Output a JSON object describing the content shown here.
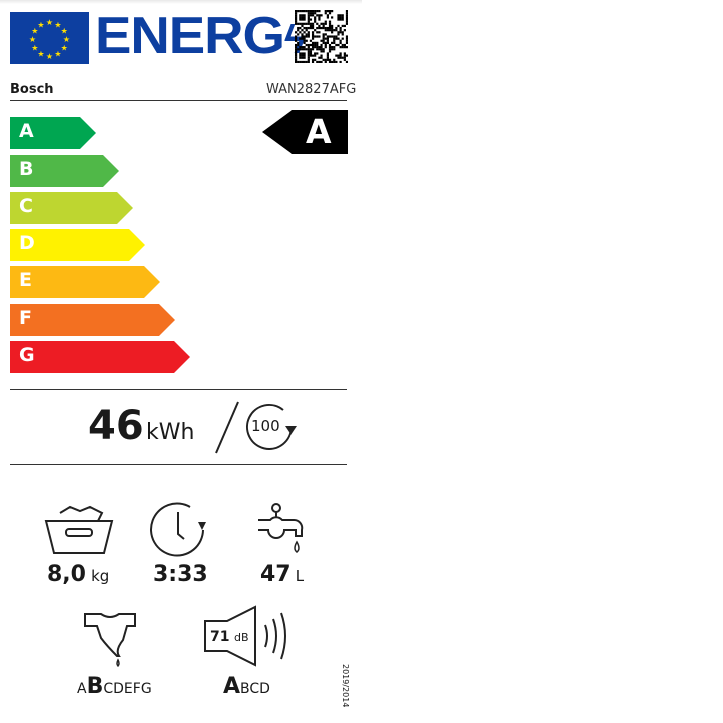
{
  "header": {
    "title": "ENERG",
    "brand": "Bosch",
    "model": "WAN2827AFG"
  },
  "scale": {
    "classes": [
      {
        "letter": "A",
        "color": "#00a651"
      },
      {
        "letter": "B",
        "color": "#50b848"
      },
      {
        "letter": "C",
        "color": "#bed630"
      },
      {
        "letter": "D",
        "color": "#fff200"
      },
      {
        "letter": "E",
        "color": "#fdb913"
      },
      {
        "letter": "F",
        "color": "#f37021"
      },
      {
        "letter": "G",
        "color": "#ed1c24"
      }
    ],
    "rating": "A"
  },
  "energy": {
    "value": "46",
    "unit": "kWh",
    "cycles": "100"
  },
  "specs": {
    "capacity": {
      "value": "8,0",
      "unit": "kg",
      "icon": "laundry-basket-icon"
    },
    "duration": {
      "value": "3:33",
      "icon": "clock-icon"
    },
    "water": {
      "value": "47",
      "unit": "L",
      "icon": "tap-icon"
    },
    "spin": {
      "pre": "A",
      "bold": "B",
      "post": "CDEFG",
      "icon": "spin-shirt-icon"
    },
    "noise": {
      "value": "71",
      "unit": "dB",
      "bold": "A",
      "post": "BCD",
      "icon": "speaker-icon"
    }
  },
  "regulation": "2019/2014"
}
